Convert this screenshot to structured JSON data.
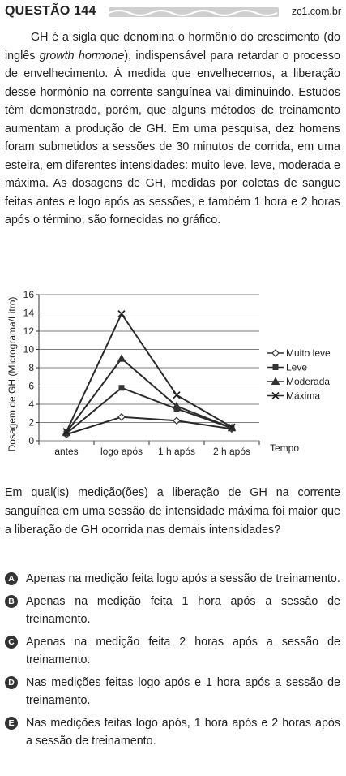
{
  "header": {
    "question_label": "QUESTÃO 144",
    "source": "zc1.com.br"
  },
  "intro": {
    "text": "GH é a sigla que denomina o hormônio do crescimento (do inglês growth hormone), indispensável para retardar o processo de envelhecimento. À medida que envelhecemos, a liberação desse hormônio na corrente sanguínea vai diminuindo. Estudos têm demonstrado, porém, que alguns métodos de treinamento aumentam a produção de GH. Em uma pesquisa, dez homens foram submetidos a sessões de 30 minutos de corrida, em uma esteira, em diferentes intensidades: muito leve, leve, moderada e máxima. As dosagens de GH, medidas por coletas de sangue feitas antes e logo após as sessões, e também 1 hora e 2 horas após o término, são fornecidas no gráfico.",
    "before_italic": "GH é a sigla que denomina o hormônio do crescimento (do inglês ",
    "italic": "growth hormone",
    "after_italic": "), indispensável para retardar o processo de envelhecimento. À medida que envelhecemos, a liberação desse hormônio na corrente sanguínea vai diminuindo. Estudos têm demonstrado, porém, que alguns métodos de treinamento aumentam a produção de GH. Em uma pesquisa, dez homens foram submetidos a sessões de 30 minutos de corrida, em uma esteira, em diferentes intensidades: muito leve, leve, moderada e máxima. As dosagens de GH, medidas por coletas de sangue feitas antes e logo após as sessões, e também 1 hora e 2 horas após o término, são fornecidas no gráfico."
  },
  "chart_data": {
    "type": "line",
    "ylabel": "Dosagem de GH (Micrograma/Litro)",
    "xlabel": "Tempo",
    "categories": [
      "antes",
      "logo após",
      "1 h após",
      "2 h após"
    ],
    "yticks": [
      0,
      2,
      4,
      6,
      8,
      10,
      12,
      14,
      16
    ],
    "ylim": [
      0,
      16
    ],
    "grid": true,
    "legend_position": "right",
    "series": [
      {
        "name": "Muito leve",
        "marker": "diamond",
        "values": [
          0.7,
          2.6,
          2.2,
          1.3
        ]
      },
      {
        "name": "Leve",
        "marker": "square",
        "values": [
          0.8,
          5.8,
          3.5,
          1.4
        ]
      },
      {
        "name": "Moderada",
        "marker": "triangle",
        "values": [
          0.9,
          9.0,
          3.8,
          1.4
        ]
      },
      {
        "name": "Máxima",
        "marker": "x",
        "values": [
          1.0,
          13.9,
          5.0,
          1.5
        ]
      }
    ]
  },
  "question": "Em qual(is) medição(ões) a liberação de GH na corrente sanguínea em uma sessão de intensidade máxima foi maior que a liberação de GH ocorrida nas demais intensidades?",
  "options": [
    {
      "letter": "A",
      "text": "Apenas na medição feita logo após a sessão de treinamento."
    },
    {
      "letter": "B",
      "text": "Apenas na medição feita 1 hora após a sessão de treinamento."
    },
    {
      "letter": "C",
      "text": "Apenas na medição feita 2 horas após a sessão de treinamento."
    },
    {
      "letter": "D",
      "text": "Nas medições feitas logo após e 1 hora após a sessão de treinamento."
    },
    {
      "letter": "E",
      "text": "Nas medições feitas logo após, 1 hora após e 2 horas após a sessão de treinamento."
    }
  ]
}
